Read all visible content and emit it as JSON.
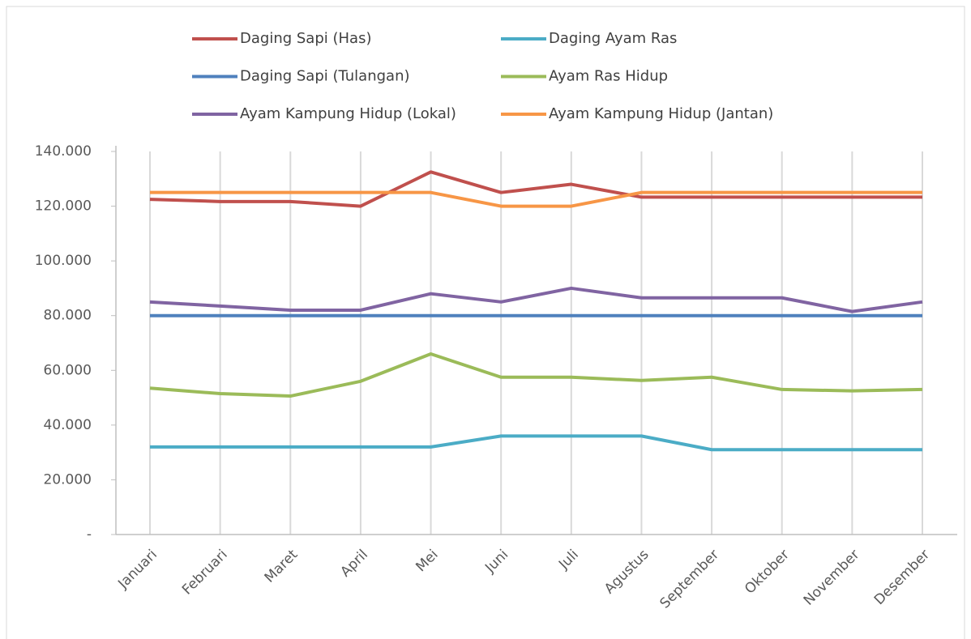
{
  "chart_data": {
    "type": "line",
    "categories": [
      "Januari",
      "Februari",
      "Maret",
      "April",
      "Mei",
      "Juni",
      "Juli",
      "Agustus",
      "September",
      "Oktober",
      "November",
      "Desember"
    ],
    "series": [
      {
        "name": "Daging Sapi (Has)",
        "color": "#c0504d",
        "values": [
          122500,
          121700,
          121700,
          120000,
          132500,
          125000,
          128000,
          123300,
          123300,
          123300,
          123300,
          123300
        ]
      },
      {
        "name": "Daging Ayam Ras",
        "color": "#4bacc6",
        "values": [
          32000,
          32000,
          32000,
          32000,
          32000,
          36000,
          36000,
          36000,
          31000,
          31000,
          31000,
          31000
        ]
      },
      {
        "name": "Daging Sapi (Tulangan)",
        "color": "#4f81bd",
        "values": [
          80000,
          80000,
          80000,
          80000,
          80000,
          80000,
          80000,
          80000,
          80000,
          80000,
          80000,
          80000
        ]
      },
      {
        "name": "Ayam Ras Hidup",
        "color": "#9bbb59",
        "values": [
          53500,
          51500,
          50600,
          56000,
          66000,
          57500,
          57500,
          56300,
          57500,
          53000,
          52500,
          53000
        ]
      },
      {
        "name": "Ayam Kampung Hidup (Lokal)",
        "color": "#8064a2",
        "values": [
          85000,
          83500,
          82000,
          82000,
          88000,
          85000,
          90000,
          86500,
          86500,
          86500,
          81500,
          85000
        ]
      },
      {
        "name": "Ayam Kampung Hidup (Jantan)",
        "color": "#f79646",
        "values": [
          125000,
          125000,
          125000,
          125000,
          125000,
          120000,
          120000,
          125000,
          125000,
          125000,
          125000,
          125000
        ]
      }
    ],
    "ylim": [
      0,
      140000
    ],
    "yticks": [
      {
        "value": 0,
        "label": "-"
      },
      {
        "value": 20000,
        "label": "20.000"
      },
      {
        "value": 40000,
        "label": "40.000"
      },
      {
        "value": 60000,
        "label": "60.000"
      },
      {
        "value": 80000,
        "label": "80.000"
      },
      {
        "value": 100000,
        "label": "100.000"
      },
      {
        "value": 120000,
        "label": "120.000"
      },
      {
        "value": 140000,
        "label": "140.000"
      }
    ],
    "grid": true
  }
}
